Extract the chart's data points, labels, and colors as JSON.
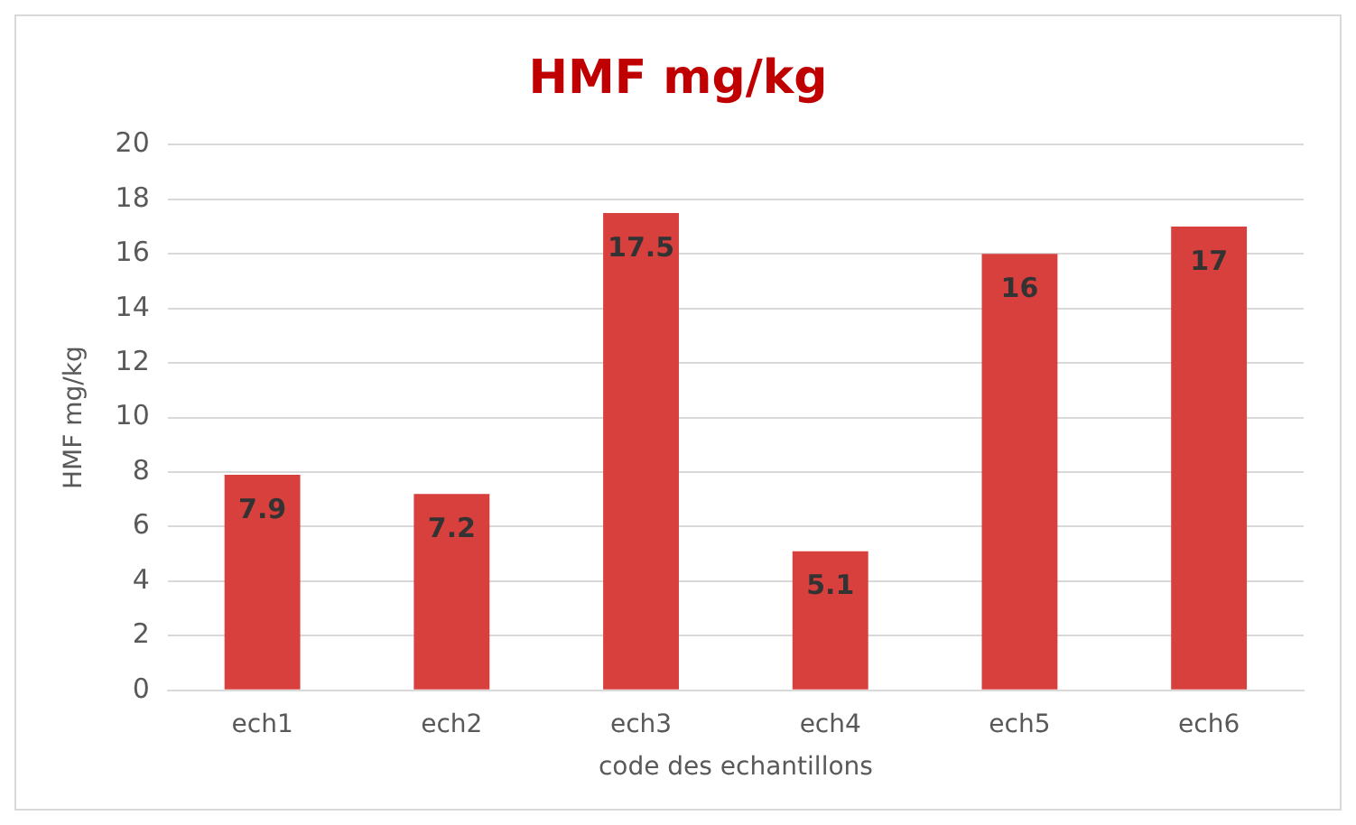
{
  "chart_data": {
    "type": "bar",
    "title": "HMF mg/kg",
    "xlabel": "code des echantillons",
    "ylabel": "HMF mg/kg",
    "categories": [
      "ech1",
      "ech2",
      "ech3",
      "ech4",
      "ech5",
      "ech6"
    ],
    "values": [
      7.9,
      7.2,
      17.5,
      5.1,
      16,
      17
    ],
    "color": "#d8403e",
    "ylim": [
      0,
      20
    ],
    "yticks": [
      0,
      2,
      4,
      6,
      8,
      10,
      12,
      14,
      16,
      18,
      20
    ],
    "grid": "y",
    "data_labels": true,
    "legend": false
  }
}
